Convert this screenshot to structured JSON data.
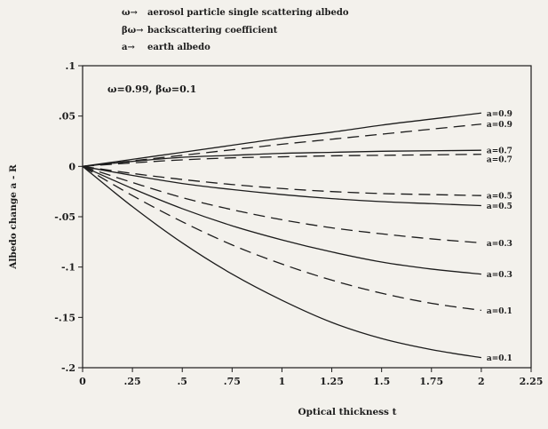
{
  "legend": [
    {
      "symbol": "ω→",
      "text": "aerosol particle single scattering albedo"
    },
    {
      "symbol": "βω→",
      "text": "backscattering coefficient"
    },
    {
      "symbol": "a→",
      "text": "earth albedo"
    }
  ],
  "colors": {
    "background": "#f3f1ec",
    "ink": "#1c1c1c"
  },
  "chart_data": {
    "type": "line",
    "annotation": "ω=0.99,  βω=0.1",
    "xlabel": "Optical thickness t",
    "ylabel": "Albedo change a - R",
    "xlim": [
      0,
      2.25
    ],
    "ylim": [
      -0.2,
      0.1
    ],
    "x_ticks": [
      0,
      0.25,
      0.5,
      0.75,
      1,
      1.25,
      1.5,
      1.75,
      2,
      2.25
    ],
    "x_tick_labels": [
      "0",
      ".25",
      ".5",
      ".75",
      "1",
      "1.25",
      "1.5",
      "1.75",
      "2",
      "2.25"
    ],
    "y_ticks": [
      0.1,
      0.05,
      0,
      -0.05,
      -0.1,
      -0.15,
      -0.2
    ],
    "y_tick_labels": [
      ".1",
      ".05",
      "0",
      "-.05",
      "-.1",
      "-.15",
      "-.2"
    ],
    "grid": false,
    "x": [
      0,
      0.25,
      0.5,
      0.75,
      1,
      1.25,
      1.5,
      1.75,
      2
    ],
    "series": [
      {
        "label": "a=0.9",
        "style": "solid",
        "values": [
          0,
          0.007,
          0.014,
          0.021,
          0.028,
          0.034,
          0.041,
          0.047,
          0.053
        ]
      },
      {
        "label": "a=0.9",
        "style": "dashed",
        "values": [
          0,
          0.0055,
          0.011,
          0.0165,
          0.022,
          0.027,
          0.032,
          0.037,
          0.042
        ]
      },
      {
        "label": "a=0.7",
        "style": "solid",
        "values": [
          0,
          0.005,
          0.009,
          0.011,
          0.013,
          0.014,
          0.015,
          0.0155,
          0.016
        ]
      },
      {
        "label": "a=0.7",
        "style": "dashed",
        "values": [
          0,
          0.0035,
          0.0065,
          0.0085,
          0.0095,
          0.0105,
          0.011,
          0.0115,
          0.012
        ]
      },
      {
        "label": "a=0.5",
        "style": "dashed",
        "values": [
          0,
          -0.007,
          -0.013,
          -0.018,
          -0.022,
          -0.025,
          -0.027,
          -0.028,
          -0.029
        ]
      },
      {
        "label": "a=0.5",
        "style": "solid",
        "values": [
          0,
          -0.009,
          -0.017,
          -0.023,
          -0.028,
          -0.032,
          -0.035,
          -0.037,
          -0.039
        ]
      },
      {
        "label": "a=0.3",
        "style": "dashed",
        "values": [
          0,
          -0.016,
          -0.031,
          -0.043,
          -0.053,
          -0.061,
          -0.067,
          -0.072,
          -0.076
        ]
      },
      {
        "label": "a=0.3",
        "style": "solid",
        "values": [
          0,
          -0.022,
          -0.042,
          -0.059,
          -0.073,
          -0.085,
          -0.095,
          -0.102,
          -0.107
        ]
      },
      {
        "label": "a=0.1",
        "style": "dashed",
        "values": [
          0,
          -0.029,
          -0.055,
          -0.078,
          -0.097,
          -0.113,
          -0.126,
          -0.136,
          -0.143
        ]
      },
      {
        "label": "a=0.1",
        "style": "solid",
        "values": [
          0,
          -0.04,
          -0.076,
          -0.107,
          -0.133,
          -0.155,
          -0.171,
          -0.182,
          -0.19
        ]
      }
    ]
  }
}
